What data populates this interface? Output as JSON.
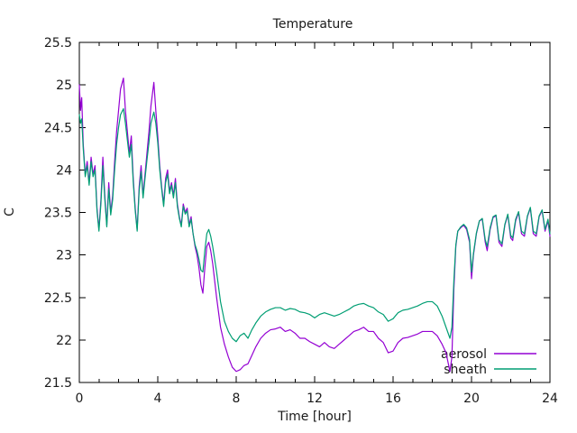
{
  "window": {
    "background": "#ffffff"
  },
  "chart_data": {
    "type": "line",
    "title": "Temperature",
    "xlabel": "Time [hour]",
    "ylabel": "C",
    "xlim": [
      0,
      24
    ],
    "ylim": [
      21.5,
      25.5
    ],
    "x_major_ticks": [
      0,
      4,
      8,
      12,
      16,
      20,
      24
    ],
    "x_minor_step": 1,
    "y_ticks": [
      21.5,
      22,
      22.5,
      23,
      23.5,
      24,
      24.5,
      25,
      25.5
    ],
    "y_tick_labels": [
      "21.5",
      "22",
      "22.5",
      "23",
      "23.5",
      "24",
      "24.5",
      "25",
      "25.5"
    ],
    "grid": false,
    "legend_position": "bottom-right-inside",
    "axis_color": "#000000",
    "text_color": "#1a1a1a",
    "x": [
      0,
      0.06,
      0.12,
      0.2,
      0.3,
      0.4,
      0.5,
      0.6,
      0.7,
      0.8,
      0.9,
      1,
      1.1,
      1.2,
      1.3,
      1.4,
      1.5,
      1.6,
      1.7,
      1.8,
      1.9,
      2,
      2.1,
      2.25,
      2.35,
      2.45,
      2.55,
      2.65,
      2.75,
      2.85,
      2.95,
      3.05,
      3.15,
      3.25,
      3.35,
      3.45,
      3.55,
      3.65,
      3.8,
      3.9,
      4,
      4.1,
      4.2,
      4.3,
      4.4,
      4.5,
      4.6,
      4.7,
      4.8,
      4.9,
      5,
      5.1,
      5.2,
      5.3,
      5.4,
      5.5,
      5.6,
      5.7,
      5.8,
      5.9,
      6,
      6.1,
      6.2,
      6.3,
      6.4,
      6.5,
      6.6,
      6.7,
      6.8,
      6.9,
      7,
      7.2,
      7.4,
      7.6,
      7.8,
      8,
      8.2,
      8.4,
      8.6,
      8.8,
      9,
      9.25,
      9.5,
      9.75,
      10,
      10.25,
      10.5,
      10.75,
      11,
      11.25,
      11.5,
      11.75,
      12,
      12.25,
      12.5,
      12.75,
      13,
      13.25,
      13.5,
      13.75,
      14,
      14.25,
      14.5,
      14.75,
      15,
      15.25,
      15.5,
      15.75,
      16,
      16.25,
      16.5,
      16.75,
      17,
      17.25,
      17.5,
      17.75,
      18,
      18.25,
      18.5,
      18.7,
      18.9,
      19,
      19.1,
      19.2,
      19.3,
      19.45,
      19.6,
      19.75,
      19.9,
      20,
      20.1,
      20.25,
      20.4,
      20.55,
      20.7,
      20.8,
      20.95,
      21.1,
      21.25,
      21.4,
      21.55,
      21.7,
      21.85,
      22,
      22.1,
      22.25,
      22.4,
      22.55,
      22.7,
      22.85,
      23,
      23.15,
      23.3,
      23.45,
      23.6,
      23.75,
      23.9,
      24
    ],
    "series": [
      {
        "name": "aerosol",
        "color": "#9400d3",
        "values": [
          25.0,
          24.7,
          24.85,
          24.3,
          23.95,
          24.1,
          23.85,
          24.15,
          23.95,
          24.05,
          23.55,
          23.3,
          23.65,
          24.15,
          23.7,
          23.35,
          23.85,
          23.5,
          23.7,
          24.1,
          24.45,
          24.7,
          24.95,
          25.08,
          24.7,
          24.45,
          24.2,
          24.4,
          23.9,
          23.55,
          23.3,
          23.8,
          24.05,
          23.7,
          23.95,
          24.2,
          24.45,
          24.75,
          25.03,
          24.7,
          24.4,
          24.05,
          23.8,
          23.6,
          23.9,
          24.0,
          23.75,
          23.85,
          23.7,
          23.9,
          23.6,
          23.45,
          23.35,
          23.6,
          23.5,
          23.55,
          23.35,
          23.45,
          23.25,
          23.1,
          23.0,
          22.85,
          22.65,
          22.55,
          22.85,
          23.1,
          23.15,
          23.05,
          22.9,
          22.7,
          22.5,
          22.15,
          21.95,
          21.8,
          21.68,
          21.63,
          21.65,
          21.7,
          21.72,
          21.82,
          21.92,
          22.02,
          22.08,
          22.12,
          22.13,
          22.15,
          22.1,
          22.12,
          22.08,
          22.02,
          22.02,
          21.98,
          21.95,
          21.92,
          21.97,
          21.92,
          21.9,
          21.95,
          22.0,
          22.05,
          22.1,
          22.12,
          22.15,
          22.1,
          22.1,
          22.02,
          21.97,
          21.85,
          21.87,
          21.97,
          22.02,
          22.03,
          22.05,
          22.07,
          22.1,
          22.1,
          22.1,
          22.05,
          21.95,
          21.85,
          21.63,
          21.8,
          22.6,
          23.1,
          23.28,
          23.32,
          23.35,
          23.3,
          23.15,
          22.72,
          23.0,
          23.25,
          23.4,
          23.42,
          23.15,
          23.05,
          23.3,
          23.44,
          23.46,
          23.15,
          23.1,
          23.35,
          23.47,
          23.2,
          23.17,
          23.4,
          23.5,
          23.25,
          23.22,
          23.45,
          23.55,
          23.25,
          23.22,
          23.45,
          23.52,
          23.28,
          23.4,
          23.22
        ]
      },
      {
        "name": "sheath",
        "color": "#009e73",
        "values": [
          24.65,
          24.55,
          24.6,
          24.25,
          23.92,
          24.05,
          23.82,
          24.1,
          23.92,
          24.0,
          23.52,
          23.28,
          23.6,
          24.05,
          23.65,
          23.33,
          23.78,
          23.47,
          23.65,
          24.0,
          24.3,
          24.5,
          24.65,
          24.72,
          24.55,
          24.35,
          24.15,
          24.3,
          23.85,
          23.52,
          23.28,
          23.75,
          23.98,
          23.67,
          23.9,
          24.12,
          24.32,
          24.55,
          24.68,
          24.55,
          24.32,
          24.0,
          23.77,
          23.57,
          23.85,
          23.95,
          23.72,
          23.82,
          23.67,
          23.85,
          23.57,
          23.43,
          23.33,
          23.57,
          23.48,
          23.52,
          23.33,
          23.42,
          23.25,
          23.12,
          23.05,
          22.95,
          22.82,
          22.8,
          23.05,
          23.25,
          23.3,
          23.22,
          23.1,
          22.95,
          22.8,
          22.45,
          22.22,
          22.1,
          22.02,
          21.98,
          22.05,
          22.08,
          22.02,
          22.12,
          22.2,
          22.28,
          22.33,
          22.36,
          22.38,
          22.38,
          22.35,
          22.37,
          22.36,
          22.33,
          22.32,
          22.3,
          22.26,
          22.3,
          22.32,
          22.3,
          22.28,
          22.3,
          22.33,
          22.36,
          22.4,
          22.42,
          22.43,
          22.4,
          22.38,
          22.33,
          22.3,
          22.22,
          22.25,
          22.32,
          22.35,
          22.36,
          22.38,
          22.4,
          22.43,
          22.45,
          22.45,
          22.4,
          22.28,
          22.15,
          22.02,
          22.15,
          22.7,
          23.12,
          23.28,
          23.33,
          23.36,
          23.32,
          23.18,
          22.8,
          23.02,
          23.26,
          23.4,
          23.43,
          23.18,
          23.1,
          23.32,
          23.45,
          23.47,
          23.18,
          23.13,
          23.36,
          23.48,
          23.23,
          23.2,
          23.42,
          23.51,
          23.28,
          23.25,
          23.46,
          23.56,
          23.28,
          23.25,
          23.46,
          23.53,
          23.3,
          23.42,
          23.25
        ]
      }
    ]
  }
}
